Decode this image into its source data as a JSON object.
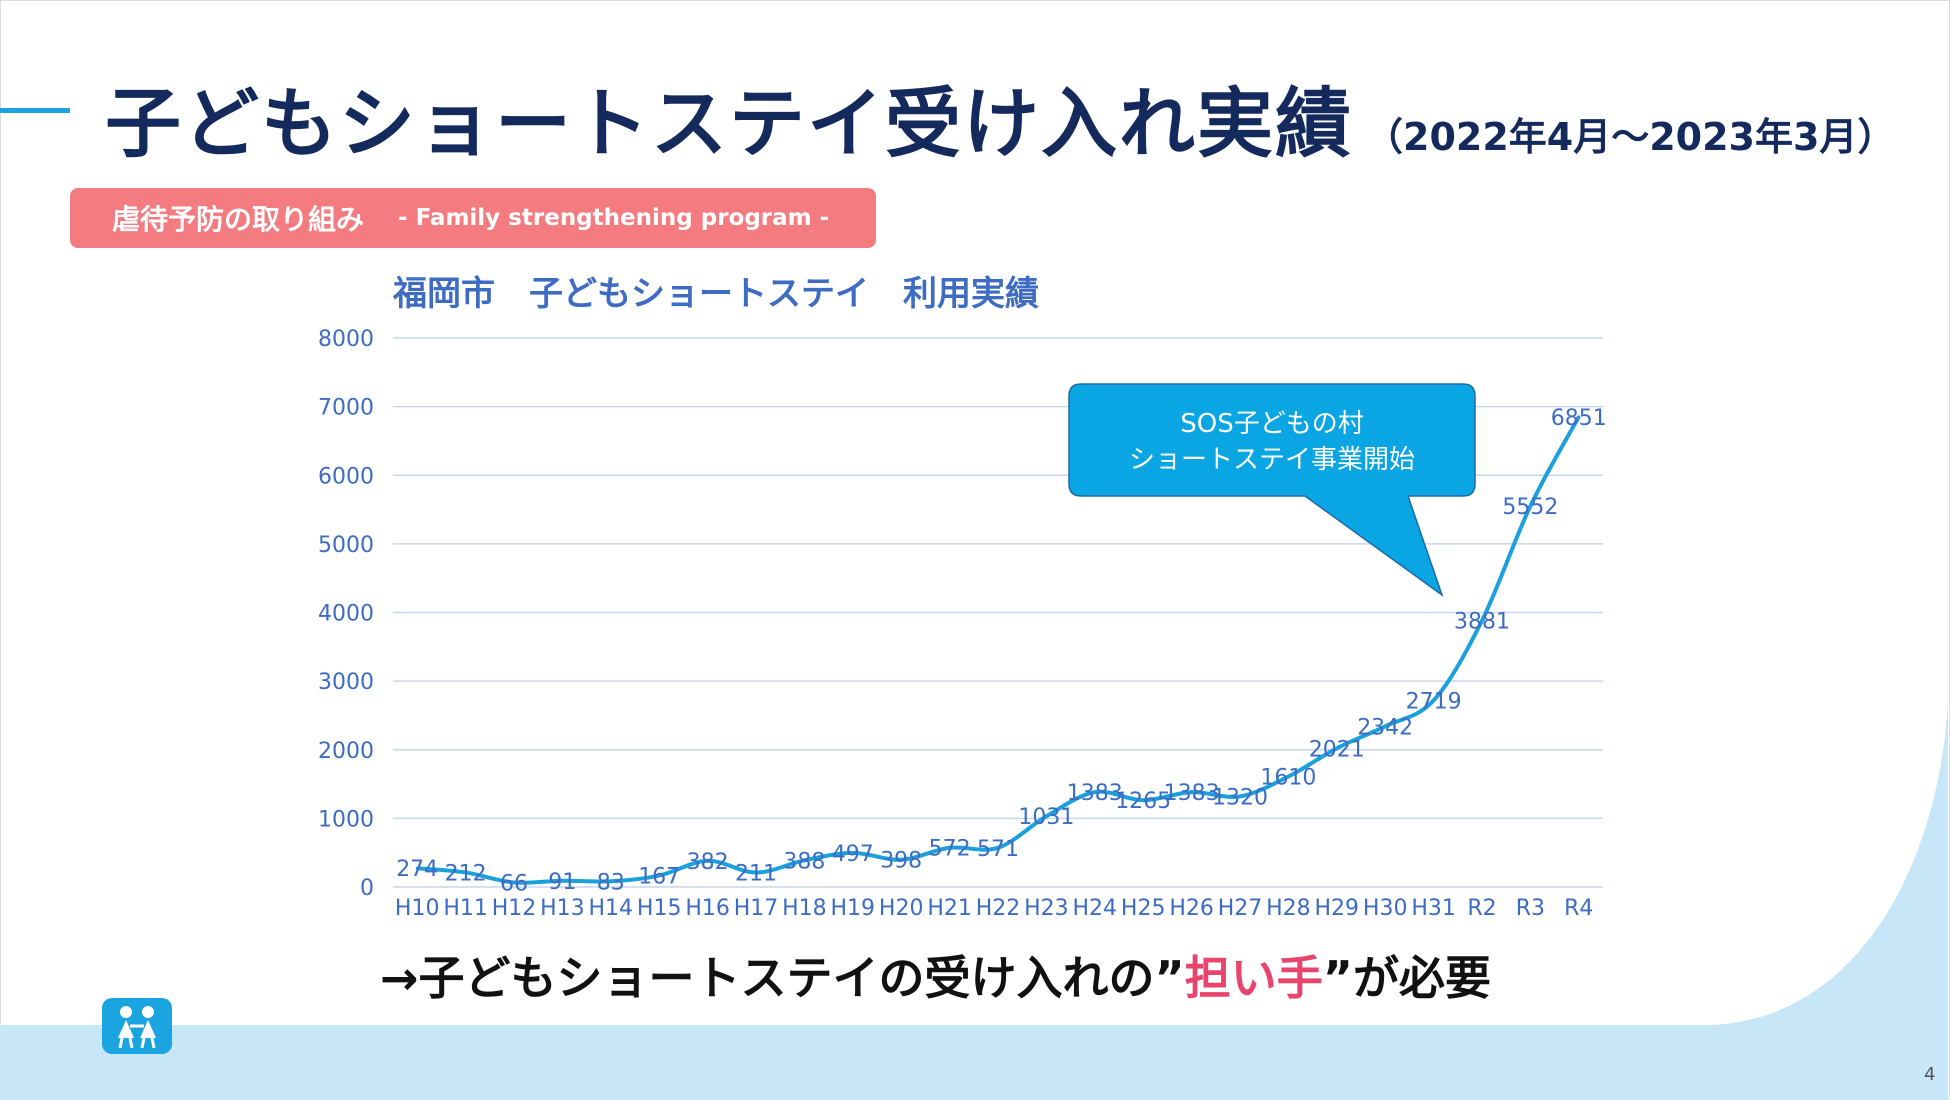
{
  "slide": {
    "title": "子どもショートステイ受け入れ実績",
    "period": "（2022年4月～2023年3月）",
    "tag_label": "虐待予防の取り組み",
    "tag_sub": "- Family strengthening program -",
    "callout": [
      "SOS子どもの村",
      "ショートステイ事業開始"
    ],
    "conclusion_pre": "→子どもショートステイの受け入れの”",
    "conclusion_highlight": "担い手",
    "conclusion_post": "”が必要",
    "page_number": "4",
    "logo_icon": "sos-childrens-villages-logo-icon"
  },
  "chart_data": {
    "type": "line",
    "title": "福岡市　子どもショートステイ　利用実績",
    "xlabel": "",
    "ylabel": "",
    "categories": [
      "H10",
      "H11",
      "H12",
      "H13",
      "H14",
      "H15",
      "H16",
      "H17",
      "H18",
      "H19",
      "H20",
      "H21",
      "H22",
      "H23",
      "H24",
      "H25",
      "H26",
      "H27",
      "H28",
      "H29",
      "H30",
      "H31",
      "R2",
      "R3",
      "R4"
    ],
    "series": [
      {
        "values": [
          274,
          212,
          66,
          91,
          83,
          167,
          382,
          211,
          388,
          497,
          398,
          572,
          571,
          1031,
          1383,
          1265,
          1383,
          1320,
          1610,
          2021,
          2342,
          2719,
          3881,
          5552,
          6851
        ]
      }
    ],
    "ylim": [
      0,
      8000
    ],
    "yticks": [
      0,
      1000,
      2000,
      3000,
      4000,
      5000,
      6000,
      7000,
      8000
    ],
    "grid": true,
    "data_labels": true,
    "legend": "none",
    "colors": {
      "line": "#1aa0dc",
      "grid": "#c7d6ee",
      "axis_text": "#3d6cc2",
      "callout": "#0aa5e3",
      "title": "#152a5c",
      "tag": "#f47b7f",
      "highlight": "#e9456c",
      "wave": "#c7e6f8"
    }
  }
}
